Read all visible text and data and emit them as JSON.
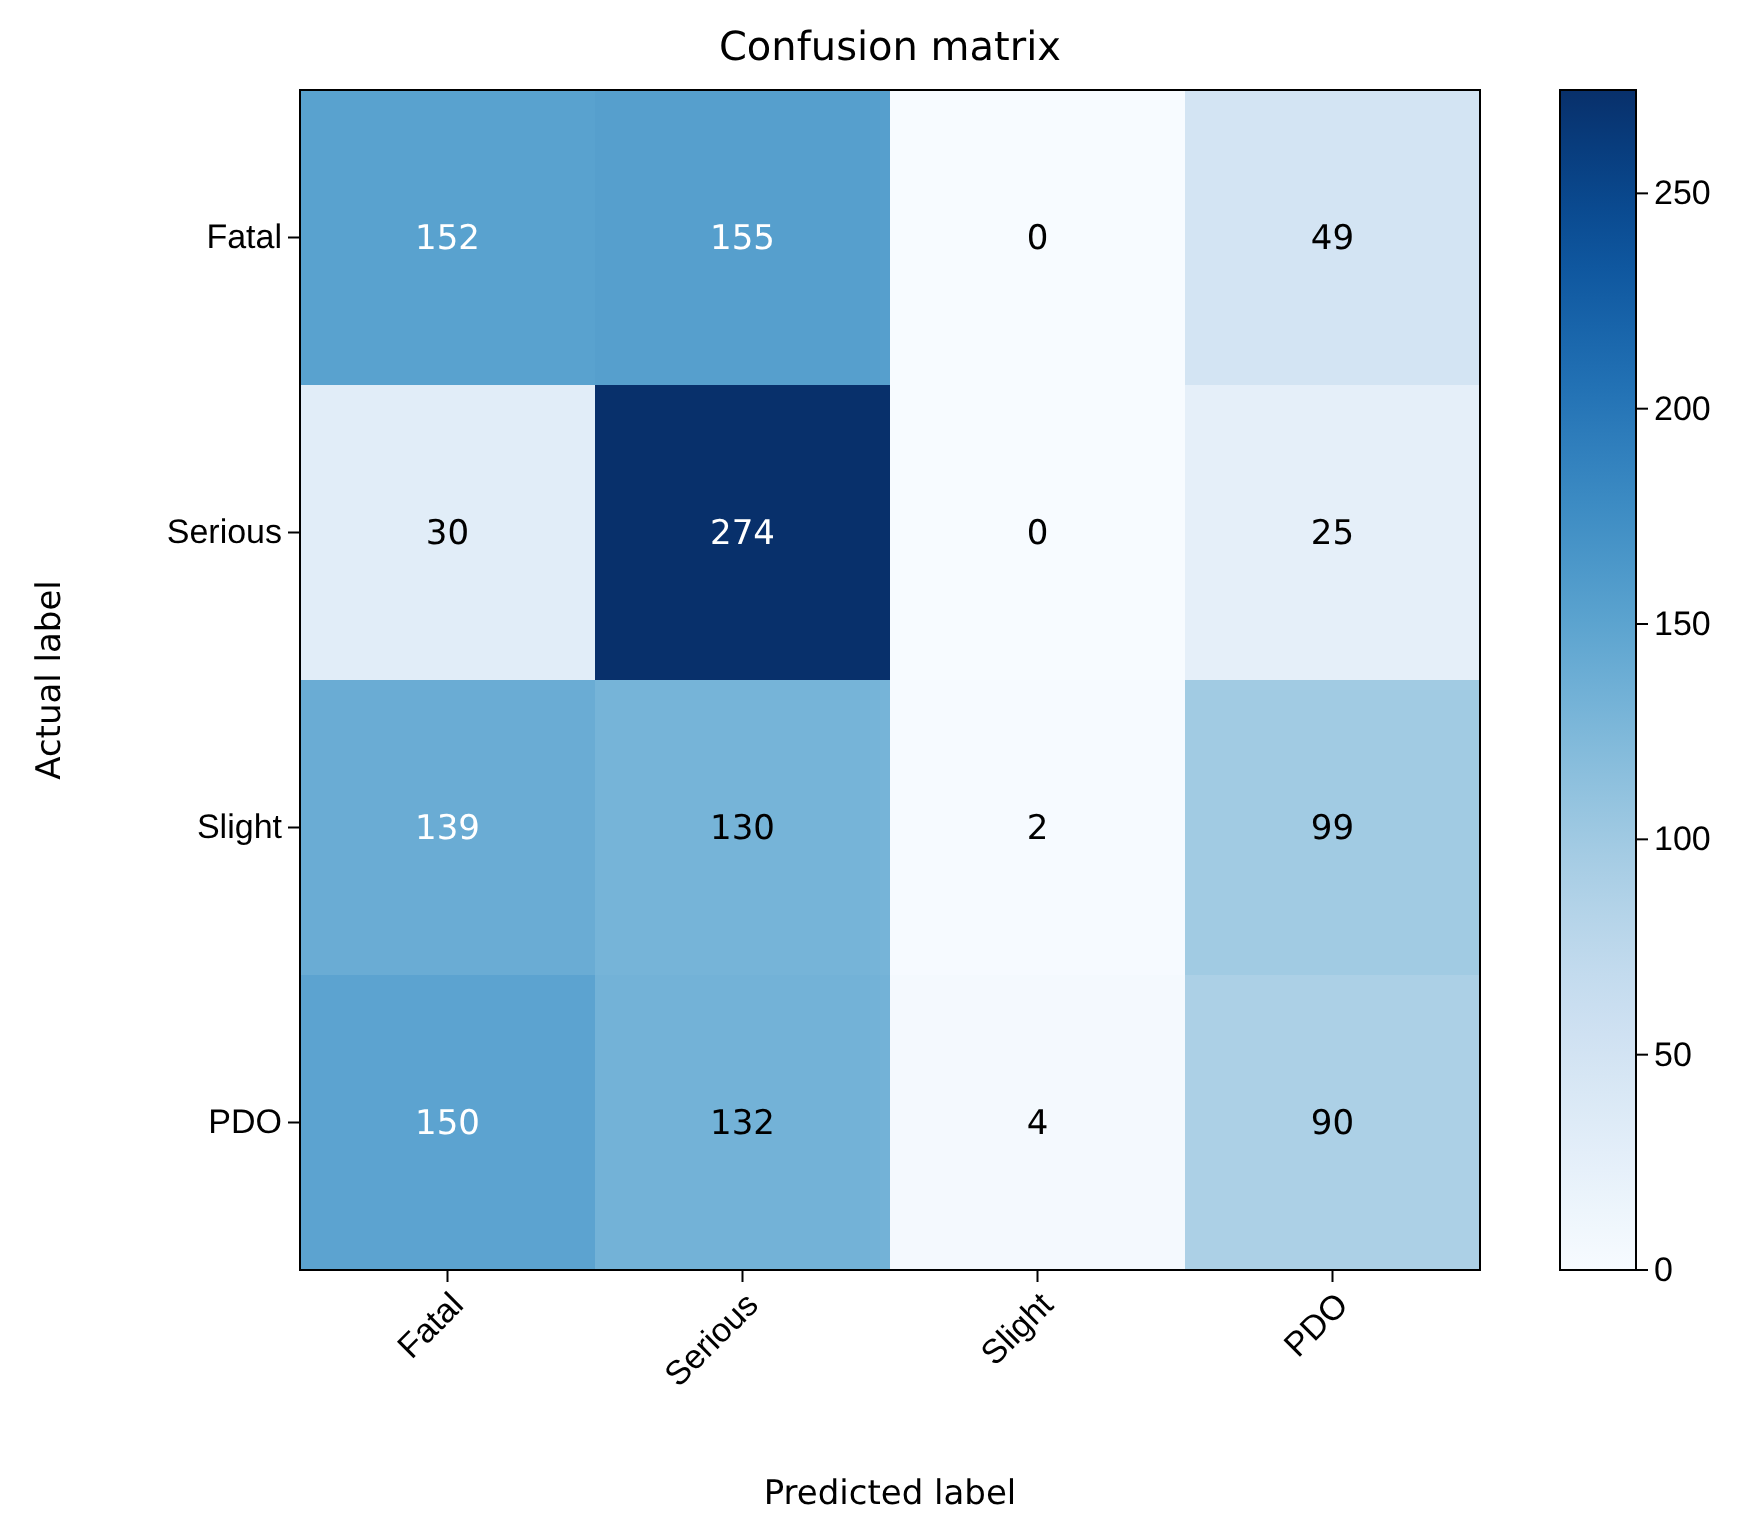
{
  "chart_data": {
    "type": "heatmap",
    "title": "Confusion matrix",
    "xlabel": "Predicted label",
    "ylabel": "Actual label",
    "categories": [
      "Fatal",
      "Serious",
      "Slight",
      "PDO"
    ],
    "y_categories": [
      "Fatal",
      "Serious",
      "Slight",
      "PDO"
    ],
    "cells": [
      [
        152,
        155,
        0,
        49
      ],
      [
        30,
        274,
        0,
        25
      ],
      [
        139,
        130,
        2,
        99
      ],
      [
        150,
        132,
        4,
        90
      ]
    ],
    "data_labels": true,
    "clim": [
      0,
      274
    ],
    "cticks": [
      0,
      50,
      100,
      150,
      200,
      250
    ]
  }
}
